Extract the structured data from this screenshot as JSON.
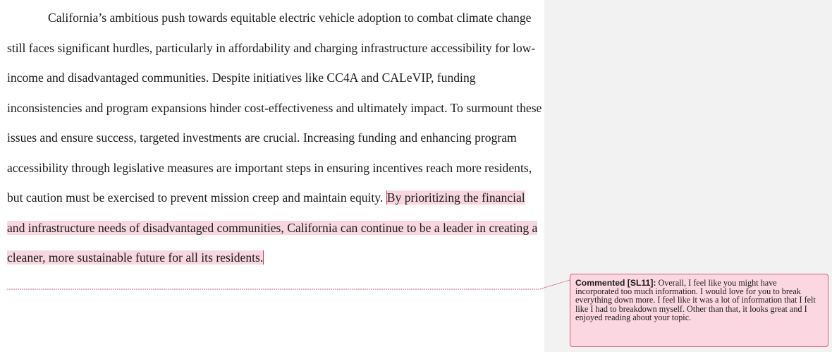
{
  "document": {
    "paragraph_plain": "California’s ambitious push towards equitable electric vehicle adoption to combat climate change still faces significant hurdles, particularly in affordability and charging infrastructure accessibility for low-income and disadvantaged communities. Despite initiatives like CC4A and CALeVIP, funding inconsistencies and program expansions hinder cost-effectiveness and ultimately impact. To surmount these issues and ensure success, targeted investments are crucial. Increasing funding and enhancing program accessibility through legislative measures are important steps in ensuring incentives reach more residents, but caution must be exercised to prevent mission creep and maintain equity. ",
    "paragraph_commented": "By prioritizing the financial and infrastructure needs of disadvantaged communities, California can continue to be a leader in creating a cleaner, more sustainable future for all its residents."
  },
  "comment": {
    "label": "Commented [SL11]:",
    "text": " Overall, I feel like you might have incorporated too much information. I would love for you to break everything down more. I feel like it was a lot of information that I felt like I had to breakdown myself. Other than that, it looks great and I enjoyed reading about your topic."
  },
  "colors": {
    "highlight": "#f9d7e0",
    "comment_fill": "#fbd7e1",
    "comment_border": "#d0607a",
    "margin_pane": "#f2f2f2"
  }
}
